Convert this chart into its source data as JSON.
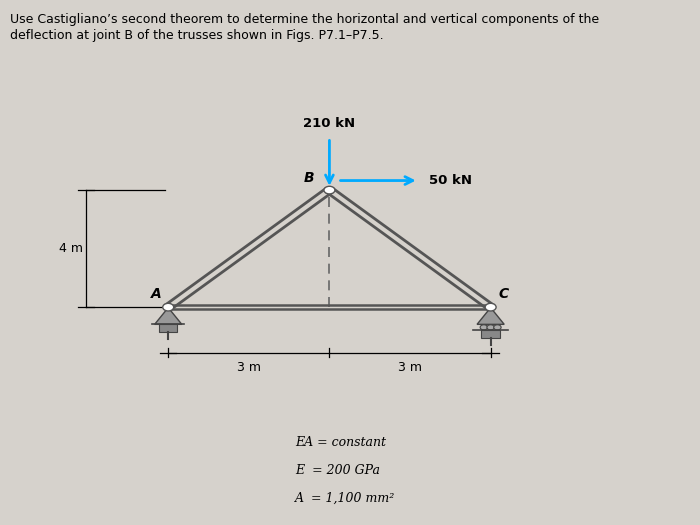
{
  "title_line1": "Use Castigliano’s second theorem to determine the horizontal and vertical components of the",
  "title_line2": "deflection at joint ​B​ of the trusses shown in Figs. P7.1–P7.5.",
  "background_color": "#d6d2cc",
  "joints": {
    "A": [
      0.235,
      0.445
    ],
    "B": [
      0.47,
      0.69
    ],
    "C": [
      0.705,
      0.445
    ]
  },
  "load_210_label": "210 kN",
  "load_50_label": "50 kN",
  "dim_3m_left": "3 m",
  "dim_3m_right": "3 m",
  "dim_4m": "4 m",
  "ea_text": "EA = constant",
  "e_text": "E  = 200 GPa",
  "a_text": "A  = 1,100 mm²",
  "arrow_210_color": "#00aaff",
  "arrow_50_color": "#00aaff",
  "member_color": "#555555",
  "support_color": "#888888",
  "text_color": "#111111"
}
